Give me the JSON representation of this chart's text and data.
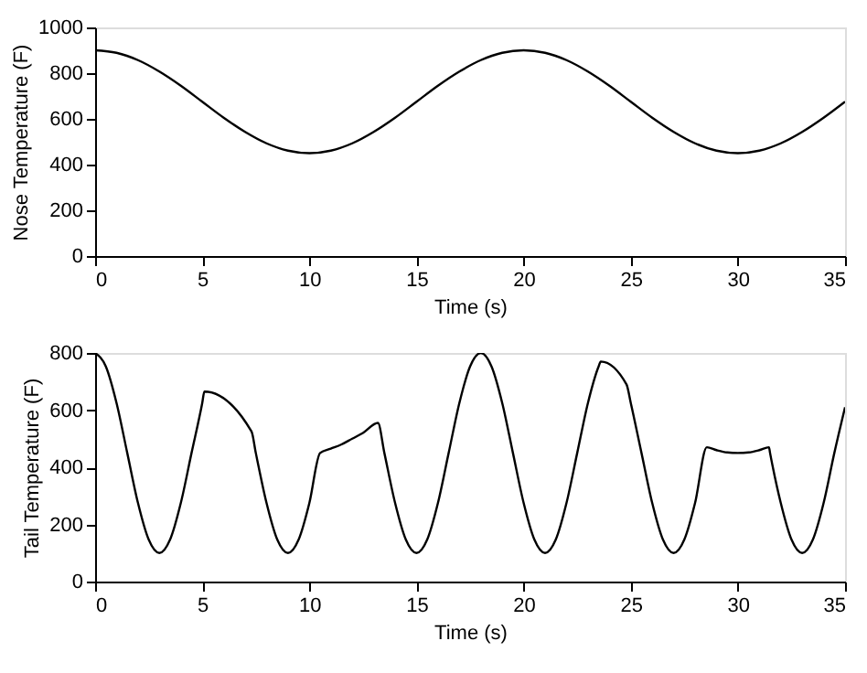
{
  "chart_data": [
    {
      "type": "line",
      "xlabel": "Time (s)",
      "ylabel": "Nose Temperature (F)",
      "xlim": [
        0,
        35
      ],
      "ylim": [
        0,
        1000
      ],
      "xticks": [
        0,
        5,
        10,
        15,
        20,
        25,
        30,
        35
      ],
      "yticks": [
        0,
        200,
        400,
        600,
        800,
        1000
      ],
      "grid": false,
      "marker": "none",
      "line_style": "solid",
      "series": [
        {
          "color": "#000000",
          "x": [
            0,
            1,
            2,
            3,
            4,
            5,
            6,
            7,
            8,
            9,
            10,
            11,
            12,
            13,
            14,
            15,
            16,
            17,
            18,
            19,
            20,
            21,
            22,
            23,
            24,
            25,
            26,
            27,
            28,
            29,
            30,
            31,
            32,
            33,
            34,
            35
          ],
          "values": [
            900,
            889,
            857,
            807,
            745,
            675,
            605,
            543,
            493,
            461,
            450,
            461,
            493,
            543,
            605,
            675,
            745,
            807,
            857,
            889,
            900,
            889,
            857,
            807,
            745,
            675,
            605,
            543,
            493,
            461,
            450,
            461,
            493,
            543,
            605,
            675
          ]
        }
      ]
    },
    {
      "type": "line",
      "xlabel": "Time (s)",
      "ylabel": "Tail Temperature (F)",
      "xlim": [
        0,
        35
      ],
      "ylim": [
        0,
        800
      ],
      "xticks": [
        0,
        5,
        10,
        15,
        20,
        25,
        30,
        35
      ],
      "yticks": [
        0,
        200,
        400,
        600,
        800
      ],
      "grid": false,
      "marker": "none",
      "line_style": "solid",
      "series": [
        {
          "color": "#000000",
          "x": [
            0,
            0.5,
            1,
            1.5,
            2,
            2.5,
            3,
            3.5,
            4,
            4.5,
            5,
            5.1,
            7.3,
            7.5,
            8,
            8.5,
            9,
            9.5,
            10,
            10.5,
            11,
            11.5,
            12,
            12.5,
            13.2,
            13.5,
            14,
            14.5,
            15,
            15.5,
            16,
            16.5,
            17,
            17.5,
            18,
            18.5,
            19,
            19.5,
            20,
            20.5,
            21,
            21.5,
            22,
            22.5,
            23,
            23.5,
            23.6,
            24.8,
            25,
            25.5,
            26,
            26.5,
            27,
            27.5,
            28,
            28.55,
            29,
            29.5,
            30,
            30.5,
            31,
            31.45,
            31.5,
            32,
            32.5,
            33,
            33.5,
            34,
            34.5,
            35
          ],
          "values": [
            800,
            753,
            625,
            450,
            275,
            147,
            100,
            147,
            275,
            450,
            625,
            665,
            525,
            450,
            275,
            147,
            100,
            147,
            275,
            450,
            465,
            480,
            500,
            520,
            555,
            450,
            275,
            147,
            100,
            147,
            275,
            450,
            625,
            753,
            800,
            753,
            625,
            450,
            275,
            147,
            100,
            147,
            275,
            450,
            625,
            753,
            770,
            690,
            625,
            450,
            275,
            147,
            100,
            147,
            275,
            470,
            460,
            452,
            450,
            452,
            460,
            470,
            450,
            275,
            147,
            100,
            147,
            275,
            450,
            610
          ]
        }
      ]
    }
  ]
}
